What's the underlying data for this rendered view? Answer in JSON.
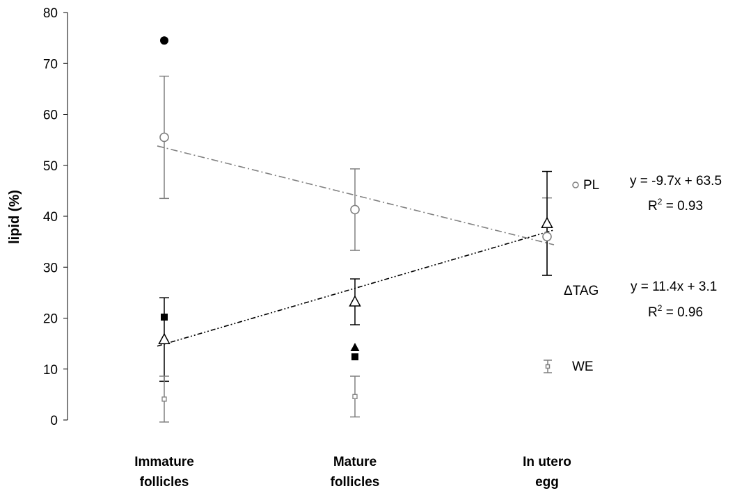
{
  "chart_data": {
    "type": "scatter",
    "ylabel": "lipid (%)",
    "xlabel": "",
    "ylim": [
      0,
      80
    ],
    "yticks": [
      0,
      10,
      20,
      30,
      40,
      50,
      60,
      70,
      80
    ],
    "grid": false,
    "categories": [
      [
        "Immature",
        "follicles"
      ],
      [
        "Mature",
        "follicles"
      ],
      [
        "In utero",
        "egg"
      ]
    ],
    "series": [
      {
        "name": "PL",
        "marker": "open-circle",
        "color": "#808080",
        "values": [
          55.5,
          41.3,
          36.0
        ],
        "errors": [
          12.0,
          8.0,
          7.6
        ]
      },
      {
        "name": "TAG",
        "marker": "open-triangle",
        "color": "#000000",
        "values": [
          15.8,
          23.2,
          38.6
        ],
        "errors": [
          8.2,
          4.5,
          10.2
        ]
      },
      {
        "name": "WE",
        "marker": "open-square",
        "color": "#808080",
        "values": [
          4.1,
          4.6,
          null
        ],
        "errors": [
          4.5,
          4.0,
          null
        ]
      },
      {
        "name": "",
        "marker": "filled-circle",
        "color": "#000000",
        "values": [
          74.5,
          null,
          null
        ]
      },
      {
        "name": "",
        "marker": "filled-square",
        "color": "#000000",
        "values": [
          20.2,
          12.4,
          null
        ]
      },
      {
        "name": "",
        "marker": "filled-triangle",
        "color": "#000000",
        "values": [
          null,
          14.2,
          null
        ]
      }
    ],
    "trendlines": [
      {
        "series": "PL",
        "slope": -9.7,
        "intercept": 63.5,
        "color": "#808080",
        "style": "dash-dot",
        "equation": "y = -9.7x + 63.5",
        "r2_label": "R",
        "r2_value": " = 0.93"
      },
      {
        "series": "TAG",
        "slope": 11.4,
        "intercept": 3.1,
        "color": "#000000",
        "style": "dash-dot-dot",
        "equation": "y = 11.4x + 3.1",
        "r2_label": "R",
        "r2_value": " = 0.96"
      }
    ],
    "legend": [
      {
        "label": "PL",
        "marker": "open-circle",
        "color": "#808080"
      },
      {
        "label": "ΔTAG",
        "marker": "none",
        "color": "#000000"
      },
      {
        "label": "WE",
        "marker": "open-square-errorbar",
        "color": "#808080"
      }
    ],
    "legend_position": "right"
  }
}
